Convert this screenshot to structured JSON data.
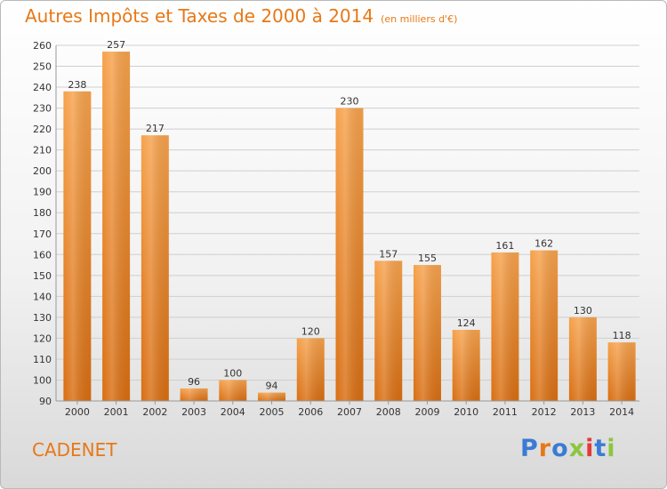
{
  "title": "Autres Impôts et Taxes de 2000 à 2014",
  "unit_note": "(en milliers d'€)",
  "commune": "CADENET",
  "logo": {
    "text": "Proxiti",
    "colors": [
      "#3a7bd5",
      "#e77817",
      "#3a7bd5",
      "#8cc63f",
      "#e23a3a",
      "#3a7bd5",
      "#8cc63f"
    ]
  },
  "colors": {
    "accent": "#e77817",
    "bar_light": "#f6a24c",
    "bar_dark": "#d86e12",
    "grid": "#cfcfcf"
  },
  "chart_data": {
    "type": "bar",
    "categories": [
      "2000",
      "2001",
      "2002",
      "2003",
      "2004",
      "2005",
      "2006",
      "2007",
      "2008",
      "2009",
      "2010",
      "2011",
      "2012",
      "2013",
      "2014"
    ],
    "values": [
      238,
      257,
      217,
      96,
      100,
      94,
      120,
      230,
      157,
      155,
      124,
      161,
      162,
      130,
      118
    ],
    "ylim": [
      90,
      260
    ],
    "yticks": [
      90,
      100,
      110,
      120,
      130,
      140,
      150,
      160,
      170,
      180,
      190,
      200,
      210,
      220,
      230,
      240,
      250,
      260
    ],
    "grid": true
  }
}
